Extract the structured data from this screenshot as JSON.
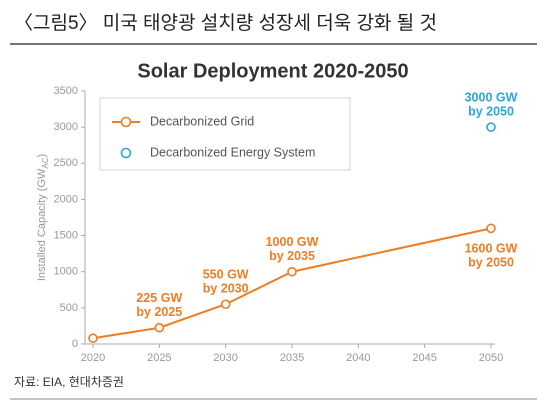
{
  "header": "〈그림5〉 미국 태양광 설치량 성장세 더욱 강화 될 것",
  "source": "자료: EIA, 현대차증권",
  "chart_data": {
    "type": "line",
    "title": "Solar Deployment 2020-2050",
    "ylabel_parts": [
      "Installed Capacity (GW",
      "AC",
      ")"
    ],
    "x": [
      2020,
      2025,
      2030,
      2035,
      2050
    ],
    "series": [
      {
        "name": "Decarbonized Grid",
        "color": "#ef7d22",
        "values": [
          80,
          225,
          550,
          1000,
          1600
        ],
        "value_labels": [
          null,
          "225 GW",
          "550 GW",
          "1000 GW",
          "1600 GW"
        ],
        "sublabels": [
          null,
          "by 2025",
          "by 2030",
          "by 2035",
          "by 2050"
        ]
      },
      {
        "name": "Decarbonized Energy System",
        "color": "#2aa7d8",
        "values": [
          null,
          null,
          null,
          null,
          3000
        ],
        "value_labels": [
          null,
          null,
          null,
          null,
          "3000 GW"
        ],
        "sublabels": [
          null,
          null,
          null,
          null,
          "by 2050"
        ]
      }
    ],
    "xlim": [
      2020,
      2050
    ],
    "xticks": [
      2020,
      2025,
      2030,
      2035,
      2040,
      2045,
      2050
    ],
    "ylim": [
      0,
      3500
    ],
    "yticks": [
      0,
      500,
      1000,
      1500,
      2000,
      2500,
      3000,
      3500
    ],
    "grid": false,
    "legend": "top-left"
  }
}
